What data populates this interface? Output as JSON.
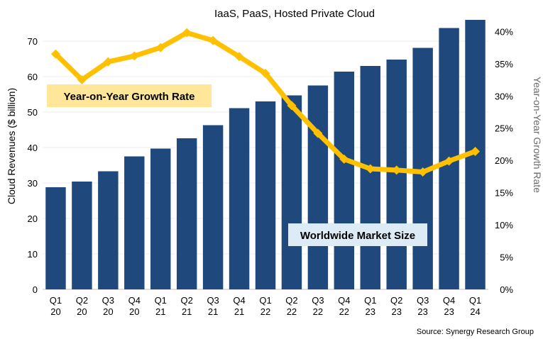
{
  "chart_data": {
    "type": "bar",
    "title": "IaaS, PaaS, Hosted Private Cloud",
    "ylabel": "Cloud Revenues ($ billion)",
    "y2label": "Year-on-Year Growth Rate",
    "source": "Source: Synergy Research Group",
    "categories": [
      [
        "Q1",
        "20"
      ],
      [
        "Q2",
        "20"
      ],
      [
        "Q3",
        "20"
      ],
      [
        "Q4",
        "20"
      ],
      [
        "Q1",
        "21"
      ],
      [
        "Q2",
        "21"
      ],
      [
        "Q3",
        "21"
      ],
      [
        "Q4",
        "21"
      ],
      [
        "Q1",
        "22"
      ],
      [
        "Q2",
        "22"
      ],
      [
        "Q3",
        "22"
      ],
      [
        "Q4",
        "22"
      ],
      [
        "Q1",
        "23"
      ],
      [
        "Q2",
        "23"
      ],
      [
        "Q3",
        "23"
      ],
      [
        "Q4",
        "23"
      ],
      [
        "Q1",
        "24"
      ]
    ],
    "series": [
      {
        "type": "bar",
        "axis": "left",
        "color": "#1f497d",
        "values": [
          28.8,
          30.4,
          33.3,
          37.5,
          39.7,
          42.6,
          46.3,
          51.1,
          53.0,
          54.7,
          57.5,
          61.4,
          63.0,
          64.8,
          68.1,
          73.7,
          76.0
        ]
      },
      {
        "type": "line",
        "axis": "right",
        "color": "#ffc000",
        "values": [
          36.5,
          32.5,
          35.3,
          36.2,
          37.5,
          39.8,
          38.6,
          36.1,
          33.5,
          28.5,
          24.2,
          20.2,
          18.7,
          18.5,
          18.2,
          19.9,
          21.4
        ]
      }
    ],
    "annotations": [
      {
        "text": "Year-on-Year Growth Rate",
        "bg": "#ffe699"
      },
      {
        "text": "Worldwide Market Size",
        "bg": "#ddebf7"
      }
    ],
    "ylim": [
      0,
      80
    ],
    "yticks": [
      "0",
      "10",
      "20",
      "30",
      "40",
      "50",
      "60",
      "70"
    ],
    "y2lim": [
      0,
      0.44
    ],
    "y2ticks": [
      "0%",
      "5%",
      "10%",
      "15%",
      "20%",
      "25%",
      "30%",
      "35%",
      "40%"
    ],
    "grid": true,
    "legend": "none"
  }
}
